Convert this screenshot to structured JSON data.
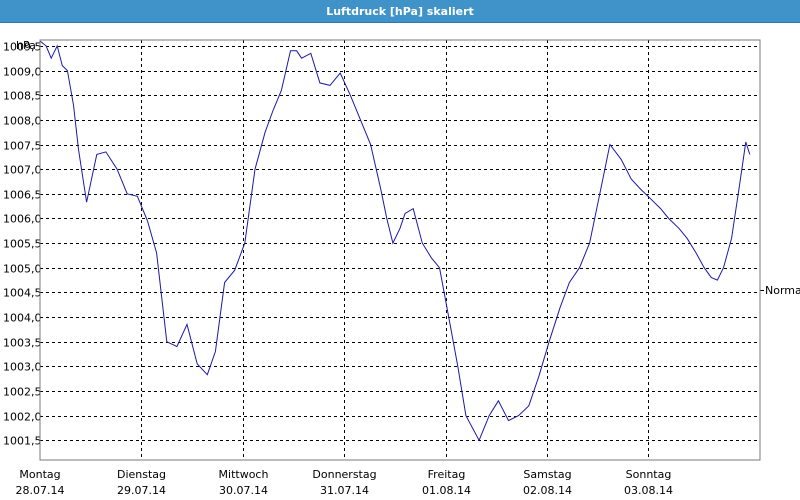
{
  "window": {
    "title": "Luftdruck [hPa] skaliert"
  },
  "chart_data": {
    "type": "line",
    "title": "Luftdruck [hPa] skaliert",
    "ylabel": "hPa",
    "ylim": [
      1001.1,
      1009.62
    ],
    "yticks": [
      1009.5,
      1009.0,
      1008.5,
      1008.0,
      1007.5,
      1007.0,
      1006.5,
      1006.0,
      1005.5,
      1005.0,
      1004.5,
      1004.0,
      1003.5,
      1003.0,
      1002.5,
      1002.0,
      1001.5
    ],
    "ytick_labels": [
      "1009,5",
      "1009,0",
      "1008,5",
      "1008,0",
      "1007,5",
      "1007,0",
      "1006,5",
      "1006,0",
      "1005,5",
      "1005,0",
      "1004,5",
      "1004,0",
      "1003,5",
      "1003,0",
      "1002,5",
      "1002,0",
      "1001,5"
    ],
    "xlim": [
      0,
      7.1
    ],
    "days": [
      {
        "x": 0,
        "day": "Montag",
        "date": "28.07.14"
      },
      {
        "x": 1,
        "day": "Dienstag",
        "date": "29.07.14"
      },
      {
        "x": 2,
        "day": "Mittwoch",
        "date": "30.07.14"
      },
      {
        "x": 3,
        "day": "Donnerstag",
        "date": "31.07.14"
      },
      {
        "x": 4,
        "day": "Freitag",
        "date": "01.08.14"
      },
      {
        "x": 5,
        "day": "Samstag",
        "date": "02.08.14"
      },
      {
        "x": 6,
        "day": "Sonntag",
        "date": "03.08.14"
      }
    ],
    "grid": true,
    "series_color": "#1a1aa8",
    "reference": {
      "label": "Normal",
      "value": 1004.55
    },
    "x": [
      0,
      0.06,
      0.11,
      0.17,
      0.22,
      0.27,
      0.33,
      0.38,
      0.46,
      0.56,
      0.65,
      0.76,
      0.86,
      0.96,
      1.06,
      1.15,
      1.25,
      1.35,
      1.45,
      1.55,
      1.65,
      1.73,
      1.82,
      1.92,
      2.02,
      2.12,
      2.22,
      2.3,
      2.38,
      2.47,
      2.53,
      2.58,
      2.67,
      2.76,
      2.86,
      2.96,
      3.06,
      3.16,
      3.26,
      3.36,
      3.42,
      3.48,
      3.55,
      3.6,
      3.68,
      3.77,
      3.86,
      3.94,
      4.03,
      4.12,
      4.2,
      4.33,
      4.43,
      4.52,
      4.62,
      4.72,
      4.82,
      4.92,
      5.02,
      5.13,
      5.22,
      5.32,
      5.42,
      5.52,
      5.62,
      5.73,
      5.83,
      5.92,
      6.02,
      6.12,
      6.2,
      6.3,
      6.38,
      6.47,
      6.55,
      6.62,
      6.68,
      6.74,
      6.82,
      6.9,
      6.96
    ],
    "y": [
      1009.6,
      1009.5,
      1009.25,
      1009.5,
      1009.1,
      1009.0,
      1008.3,
      1007.4,
      1006.33,
      1007.3,
      1007.35,
      1007.0,
      1006.5,
      1006.45,
      1005.95,
      1005.3,
      1003.5,
      1003.4,
      1003.85,
      1003.05,
      1002.83,
      1003.3,
      1004.7,
      1004.95,
      1005.5,
      1007.0,
      1007.75,
      1008.2,
      1008.6,
      1009.4,
      1009.4,
      1009.25,
      1009.35,
      1008.75,
      1008.7,
      1008.95,
      1008.5,
      1008.0,
      1007.5,
      1006.6,
      1006.0,
      1005.5,
      1005.8,
      1006.1,
      1006.2,
      1005.5,
      1005.2,
      1005.0,
      1004.0,
      1003.0,
      1002.0,
      1001.5,
      1002.0,
      1002.3,
      1001.9,
      1002.0,
      1002.2,
      1002.8,
      1003.5,
      1004.2,
      1004.7,
      1005.0,
      1005.5,
      1006.5,
      1007.5,
      1007.2,
      1006.8,
      1006.6,
      1006.4,
      1006.2,
      1006.0,
      1005.8,
      1005.6,
      1005.3,
      1005.0,
      1004.8,
      1004.75,
      1005.0,
      1005.6,
      1006.7,
      1007.55
    ],
    "y_tail": 1007.3
  }
}
